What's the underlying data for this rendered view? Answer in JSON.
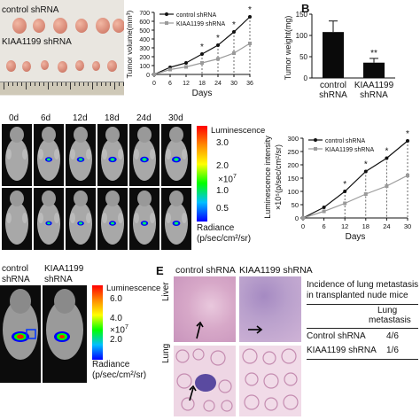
{
  "colors": {
    "control": "#111111",
    "kiaa": "#9a9a9a",
    "bar": "#0a0a0a",
    "colorbar": [
      "#ff0000",
      "#ff8a00",
      "#ffff00",
      "#00ff00",
      "#00bfff",
      "#0000ff"
    ]
  },
  "panel_a": {
    "control_label": "control shRNA",
    "kiaa_label": "KIAA1199 shRNA"
  },
  "panel_b": {
    "letter": "B",
    "sig": "**"
  },
  "panel_c": {
    "days": [
      "0d",
      "6d",
      "12d",
      "18d",
      "24d",
      "30d"
    ],
    "colorbar_title": "Luminescence",
    "ticks": [
      "3.0",
      "2.0",
      "1.0",
      "0.5"
    ],
    "scale": "×10",
    "scale_exp": "7",
    "radiance_label": "Radiance",
    "radiance_unit": "(p/sec/cm²/sr)"
  },
  "panel_d": {
    "label1": "control",
    "label2": "shRNA",
    "label3": "KIAA1199",
    "label4": "shRNA",
    "colorbar_title": "Luminescence",
    "ticks": [
      "6.0",
      "4.0",
      "2.0"
    ],
    "scale": "×10",
    "scale_exp": "7",
    "radiance_label": "Radiance",
    "radiance_unit": "(p/sec/cm²/sr)"
  },
  "panel_e": {
    "letter": "E",
    "col1": "control shRNA",
    "col2": "KIAA1199 shRNA",
    "row1": "Liver",
    "row2": "Lung",
    "table_title1": "Incidence of lung metastasis",
    "table_title2": "in transplanted nude mice",
    "table_head1": "Lung",
    "table_head2": "metastasis",
    "rows": [
      {
        "group": "Control shRNA",
        "value": "4/6"
      },
      {
        "group": "KIAA1199 shRNA",
        "value": "1/6"
      }
    ]
  },
  "chart_data": [
    {
      "type": "line",
      "xlabel": "Days",
      "ylabel": "Tumor volume(mm³)",
      "x": [
        0,
        6,
        12,
        18,
        24,
        30,
        36
      ],
      "xlim": [
        0,
        36
      ],
      "ylim": [
        0,
        700
      ],
      "yticks": [
        0,
        100,
        200,
        300,
        400,
        500,
        600,
        700
      ],
      "series": [
        {
          "name": "control shRNA",
          "values": [
            0,
            80,
            130,
            230,
            330,
            480,
            650
          ]
        },
        {
          "name": "KIAA1199 shRNA",
          "values": [
            0,
            55,
            85,
            130,
            175,
            240,
            350
          ]
        }
      ],
      "significance_at": [
        18,
        24,
        30,
        36
      ],
      "significance_mark": "*",
      "legend": "top-left"
    },
    {
      "type": "bar",
      "ylabel": "Tumor weight(mg)",
      "categories": [
        "control shRNA",
        "KIAA1199 shRNA"
      ],
      "category_lines": [
        [
          "control",
          "shRNA"
        ],
        [
          "KIAA1199",
          "shRNA"
        ]
      ],
      "values": [
        108,
        36
      ],
      "errors": [
        26,
        10
      ],
      "ylim": [
        0,
        150
      ],
      "yticks": [
        0,
        50,
        100,
        150
      ],
      "significance": "**"
    },
    {
      "type": "line",
      "xlabel": "Days",
      "ylabel": "Luminescence intensity",
      "ylabel2": "×10⁵(p/sec/cm²/sr)",
      "x": [
        0,
        6,
        12,
        18,
        24,
        30
      ],
      "xlim": [
        0,
        30
      ],
      "ylim": [
        0,
        300
      ],
      "yticks": [
        0,
        50,
        100,
        150,
        200,
        250,
        300
      ],
      "series": [
        {
          "name": "control shRNA",
          "values": [
            0,
            40,
            100,
            175,
            225,
            290
          ]
        },
        {
          "name": "KIAA1199 shRNA",
          "values": [
            0,
            25,
            55,
            90,
            120,
            160
          ]
        }
      ],
      "significance_at": [
        12,
        18,
        24,
        30
      ],
      "significance_mark": "*",
      "legend": "top-left"
    }
  ]
}
